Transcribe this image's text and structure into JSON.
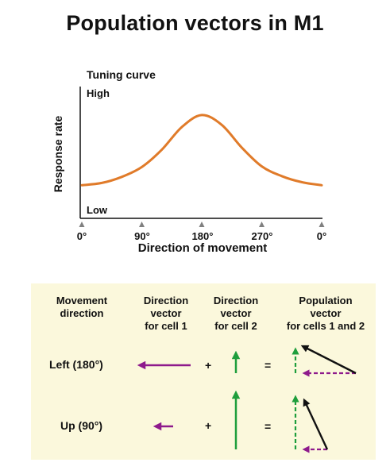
{
  "title": "Population vectors in M1",
  "chart": {
    "title": "Tuning curve",
    "ylabel": "Response rate",
    "high_label": "High",
    "low_label": "Low",
    "xlabel": "Direction of movement",
    "ticks": [
      "0°",
      "90°",
      "180°",
      "270°",
      "0°"
    ]
  },
  "chart_data": {
    "type": "line",
    "title": "Tuning curve",
    "xlabel": "Direction of movement",
    "ylabel": "Response rate",
    "x": [
      0,
      30,
      60,
      90,
      120,
      150,
      180,
      210,
      240,
      270,
      300,
      330,
      360
    ],
    "series": [
      {
        "values": [
          0.05,
          0.08,
          0.16,
          0.29,
          0.52,
          0.82,
          0.98,
          0.85,
          0.55,
          0.3,
          0.17,
          0.09,
          0.05
        ]
      }
    ],
    "xlim": [
      0,
      360
    ],
    "ylim": [
      0,
      1
    ],
    "xticks": [
      "0°",
      "90°",
      "180°",
      "270°",
      "0°"
    ],
    "ytick_labels": [
      "Low",
      "High"
    ],
    "line_color": "#e07b2a"
  },
  "table": {
    "headers": {
      "movement": [
        "Movement",
        "direction"
      ],
      "cell1": [
        "Direction",
        "vector",
        "for cell 1"
      ],
      "cell2": [
        "Direction",
        "vector",
        "for cell 2"
      ],
      "population": [
        "Population",
        "vector",
        "for cells 1 and 2"
      ]
    },
    "rows": [
      {
        "label": "Left (180°)",
        "plus": "+",
        "equals": "="
      },
      {
        "label": "Up (90°)",
        "plus": "+",
        "equals": "="
      }
    ]
  },
  "colors": {
    "purple": "#8e1a8c",
    "green": "#1e9e3c",
    "black": "#111111",
    "panel_bg": "#fbf8dc",
    "curve": "#e07b2a",
    "tick_marker": "#808080"
  }
}
